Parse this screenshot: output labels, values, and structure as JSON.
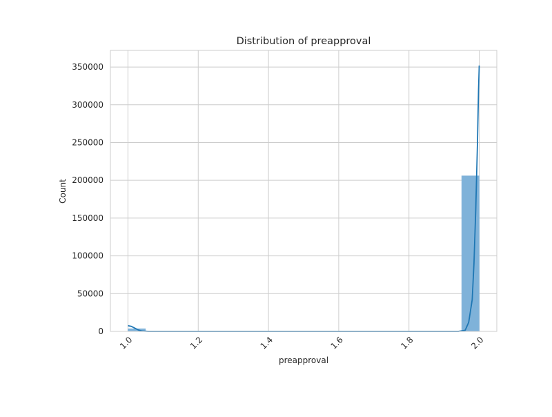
{
  "chart_data": {
    "type": "bar",
    "title": "Distribution of preapproval",
    "xlabel": "preapproval",
    "ylabel": "Count",
    "xlim": [
      0.95,
      2.05
    ],
    "ylim": [
      0,
      372000
    ],
    "x_ticks": [
      1.0,
      1.2,
      1.4,
      1.6,
      1.8,
      2.0
    ],
    "x_tick_labels": [
      "1.0",
      "1.2",
      "1.4",
      "1.6",
      "1.8",
      "2.0"
    ],
    "y_ticks": [
      0,
      50000,
      100000,
      150000,
      200000,
      250000,
      300000,
      350000
    ],
    "y_tick_labels": [
      "0",
      "50000",
      "100000",
      "150000",
      "200000",
      "250000",
      "300000",
      "350000"
    ],
    "bins": [
      {
        "x0": 1.0,
        "x1": 1.05,
        "count": 3600
      },
      {
        "x0": 1.95,
        "x1": 2.0,
        "count": 206000
      }
    ],
    "kde_line": {
      "x": [
        1.0,
        1.01,
        1.02,
        1.03,
        1.04,
        1.06,
        1.1,
        1.2,
        1.4,
        1.6,
        1.8,
        1.94,
        1.96,
        1.97,
        1.98,
        1.985,
        1.99,
        1.995,
        1.998,
        2.0
      ],
      "y": [
        7500,
        6600,
        4200,
        1800,
        500,
        0,
        0,
        0,
        0,
        0,
        0,
        0,
        1500,
        12000,
        42000,
        90000,
        160000,
        250000,
        320000,
        352000
      ]
    },
    "grid": true,
    "x_tick_rotation_deg": 45,
    "colors": {
      "bar_fill": "#7fb2d9",
      "bar_edge": "#7fb2d9",
      "kde_line": "#1f77b4",
      "grid": "#cccccc",
      "spine": "#cccccc"
    }
  }
}
